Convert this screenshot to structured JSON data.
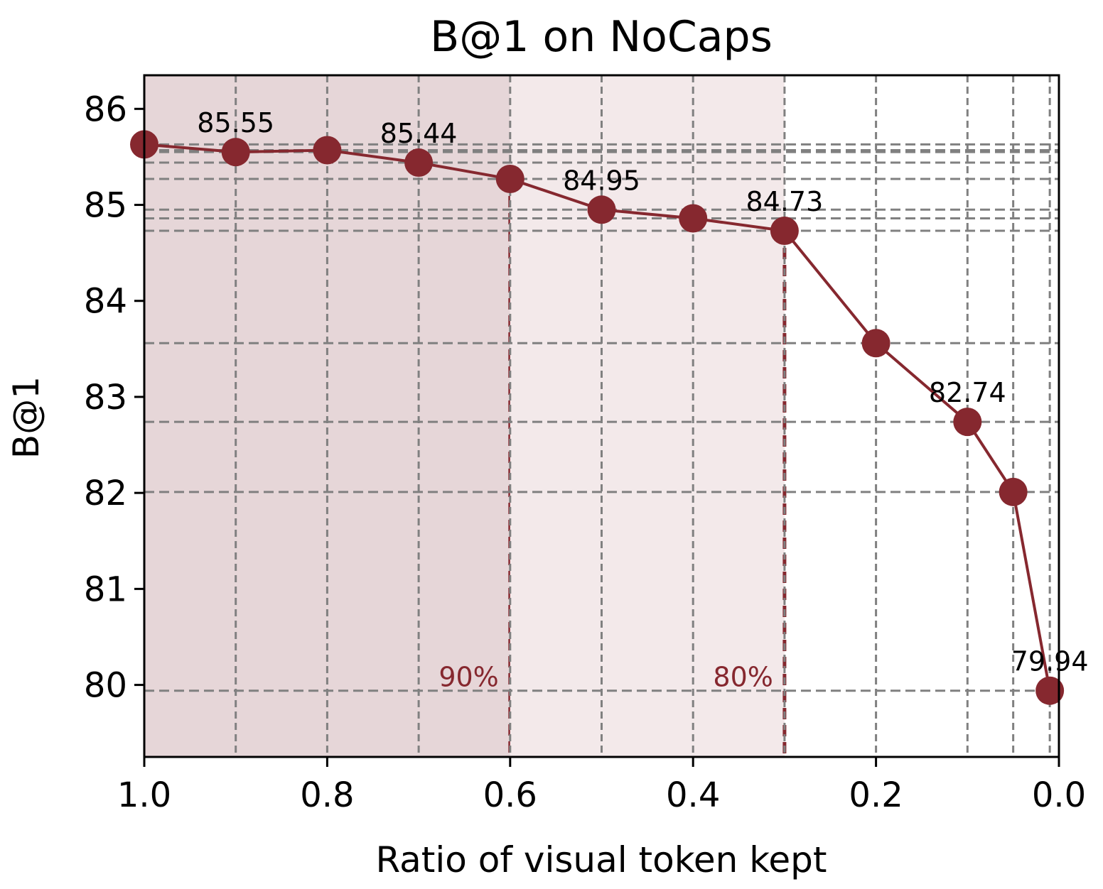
{
  "chart_data": {
    "type": "line",
    "title": "B@1 on NoCaps",
    "xlabel": "Ratio of visual token kept",
    "ylabel": "B@1",
    "x_reversed": true,
    "xlim": [
      1.0,
      0.0
    ],
    "ylim": [
      79.25,
      86.35
    ],
    "xticks": [
      {
        "value": 1.0,
        "label": "1.0"
      },
      {
        "value": 0.8,
        "label": "0.8"
      },
      {
        "value": 0.6,
        "label": "0.6"
      },
      {
        "value": 0.4,
        "label": "0.4"
      },
      {
        "value": 0.2,
        "label": "0.2"
      },
      {
        "value": 0.0,
        "label": "0.0"
      }
    ],
    "yticks": [
      {
        "value": 80,
        "label": "80"
      },
      {
        "value": 81,
        "label": "81"
      },
      {
        "value": 82,
        "label": "82"
      },
      {
        "value": 83,
        "label": "83"
      },
      {
        "value": 84,
        "label": "84"
      },
      {
        "value": 85,
        "label": "85"
      },
      {
        "value": 86,
        "label": "86"
      }
    ],
    "grid": true,
    "series": [
      {
        "color": "#86282f",
        "x": [
          1.0,
          0.9,
          0.8,
          0.7,
          0.6,
          0.5,
          0.4,
          0.3,
          0.2,
          0.1,
          0.05,
          0.01
        ],
        "values": [
          85.63,
          85.55,
          85.57,
          85.44,
          85.27,
          84.95,
          84.86,
          84.73,
          83.56,
          82.74,
          82.01,
          79.94
        ]
      }
    ],
    "data_labels": [
      {
        "x": 0.9,
        "y": 85.55,
        "text": "85.55"
      },
      {
        "x": 0.7,
        "y": 85.44,
        "text": "85.44"
      },
      {
        "x": 0.5,
        "y": 84.95,
        "text": "84.95"
      },
      {
        "x": 0.3,
        "y": 84.73,
        "text": "84.73"
      },
      {
        "x": 0.1,
        "y": 82.74,
        "text": "82.74"
      },
      {
        "x": 0.01,
        "y": 79.94,
        "text": "79.94"
      }
    ],
    "shaded_regions": [
      {
        "from": 1.0,
        "to": 0.6,
        "color": "#e6d6d8",
        "marker_label": "90%"
      },
      {
        "from": 0.6,
        "to": 0.3,
        "color": "#f3e9ea",
        "marker_label": "80%"
      }
    ],
    "colors": {
      "line": "#86282f",
      "grid": "#808080",
      "marker_label": "#86282f"
    }
  }
}
